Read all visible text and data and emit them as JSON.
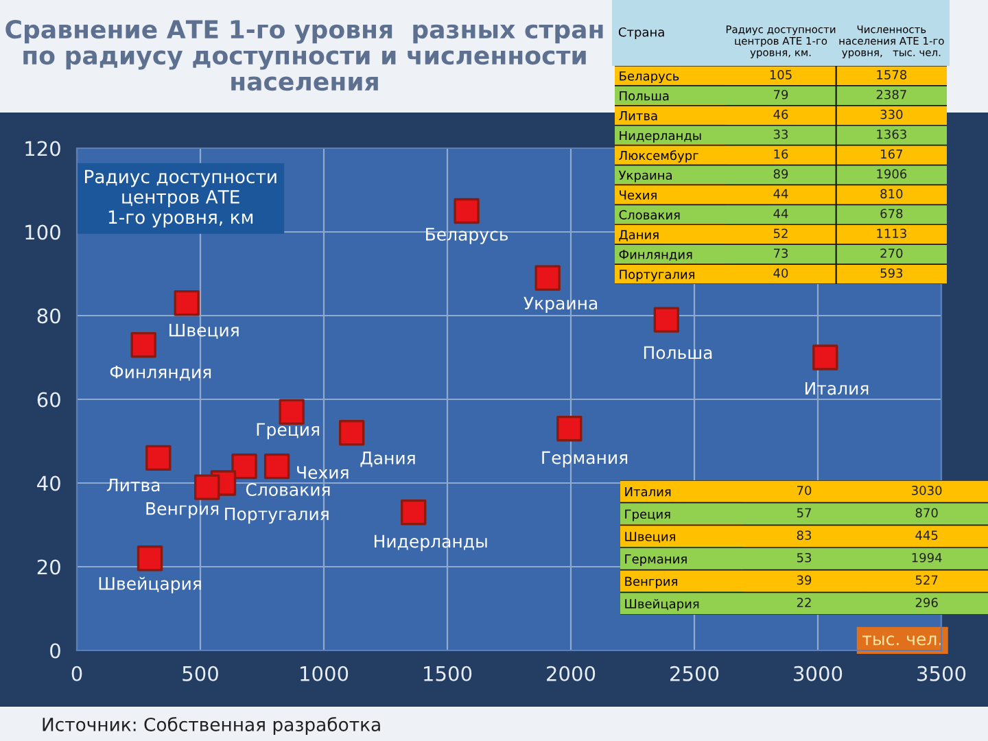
{
  "chart_data": [
    {
      "type": "scatter",
      "title": "Сравнение АТЕ 1-го уровня  разных стран по радиусу доступности и численности населения",
      "ylabel": "Радиус доступности\nцентров АТЕ\n1-го уровня, км",
      "xlabel": "тыс. чел.",
      "x": [
        1578,
        2387,
        330,
        1363,
        1906,
        810,
        678,
        1113,
        270,
        593,
        3030,
        870,
        445,
        1994,
        527,
        296
      ],
      "values": [
        105,
        79,
        46,
        33,
        89,
        44,
        44,
        52,
        73,
        40,
        70,
        57,
        83,
        53,
        39,
        22
      ],
      "color": "#e8141a",
      "marker": "square",
      "grid": true,
      "xlim": [
        0,
        3500
      ],
      "ylim": [
        0,
        120
      ],
      "xticks": [
        0,
        500,
        1000,
        1500,
        2000,
        2500,
        3000,
        3500
      ],
      "yticks": [
        0,
        20,
        40,
        60,
        80,
        100,
        120
      ],
      "annotations": [
        {
          "text": "Беларусь",
          "x": 1578,
          "y": 105
        },
        {
          "text": "Польша",
          "x": 2387,
          "y": 79
        },
        {
          "text": "Литва",
          "x": 330,
          "y": 46
        },
        {
          "text": "Нидерланды",
          "x": 1363,
          "y": 33
        },
        {
          "text": "Украина",
          "x": 1906,
          "y": 89
        },
        {
          "text": "Чехия",
          "x": 810,
          "y": 44
        },
        {
          "text": "Словакия",
          "x": 678,
          "y": 44
        },
        {
          "text": "Дания",
          "x": 1113,
          "y": 52
        },
        {
          "text": "Финляндия",
          "x": 270,
          "y": 73
        },
        {
          "text": "Португалия",
          "x": 593,
          "y": 40
        },
        {
          "text": "Италия",
          "x": 3030,
          "y": 70
        },
        {
          "text": "Греция",
          "x": 870,
          "y": 57
        },
        {
          "text": "Швеция",
          "x": 445,
          "y": 83
        },
        {
          "text": "Германия",
          "x": 1994,
          "y": 53
        },
        {
          "text": "Венгрия",
          "x": 527,
          "y": 39
        },
        {
          "text": "Швейцария",
          "x": 296,
          "y": 22
        },
        "Источник: Собственная разработка"
      ]
    },
    {
      "type": "heatmap",
      "ylabel": "Страна",
      "categories": [
        "Радиус доступности\nцентров АТЕ 1-го\nуровня, км.",
        "Численность\nнаселения АТЕ 1-го\nуровня,   тыс. чел."
      ],
      "y_categories": [
        "Беларусь",
        "Польша",
        "Литва",
        "Нидерланды",
        "Люксембург",
        "Украина",
        "Чехия",
        "Словакия",
        "Дания",
        "Финляндия",
        "Португалия"
      ],
      "cells": [
        [
          105,
          1578
        ],
        [
          79,
          2387
        ],
        [
          46,
          330
        ],
        [
          33,
          1363
        ],
        [
          16,
          167
        ],
        [
          89,
          1906
        ],
        [
          44,
          810
        ],
        [
          44,
          678
        ],
        [
          52,
          1113
        ],
        [
          73,
          270
        ],
        [
          40,
          593
        ]
      ],
      "data_labels": true
    },
    {
      "type": "heatmap",
      "categories": [
        null,
        null
      ],
      "y_categories": [
        "Италия",
        "Греция",
        "Швеция",
        "Германия",
        "Венгрия",
        "Швейцария"
      ],
      "cells": [
        [
          70,
          3030
        ],
        [
          57,
          870
        ],
        [
          83,
          445
        ],
        [
          53,
          1994
        ],
        [
          39,
          527
        ],
        [
          22,
          296
        ]
      ],
      "data_labels": true
    }
  ]
}
